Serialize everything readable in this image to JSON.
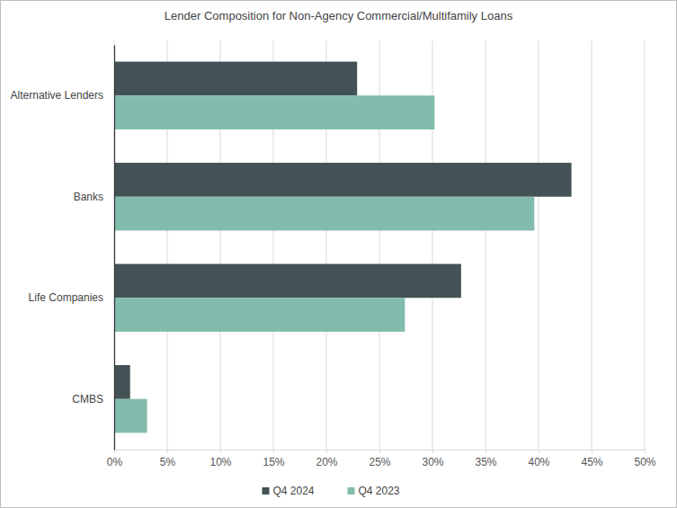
{
  "chart_data": {
    "type": "bar",
    "title": "Lender Composition for Non-Agency Commercial/Multifamily Loans",
    "orientation": "horizontal",
    "categories": [
      "Alternative Lenders",
      "Banks",
      "Life Companies",
      "CMBS"
    ],
    "series": [
      {
        "name": "Q4 2024",
        "color": "#435254",
        "values": [
          22.9,
          43.1,
          32.7,
          1.5
        ]
      },
      {
        "name": "Q4 2023",
        "color": "#82bcad",
        "values": [
          30.2,
          39.6,
          27.4,
          3.1
        ]
      }
    ],
    "xlim": [
      0,
      50
    ],
    "xticks": [
      {
        "value": 0,
        "label": "0%"
      },
      {
        "value": 5,
        "label": "5%"
      },
      {
        "value": 10,
        "label": "10%"
      },
      {
        "value": 15,
        "label": "15%"
      },
      {
        "value": 20,
        "label": "20%"
      },
      {
        "value": 25,
        "label": "25%"
      },
      {
        "value": 30,
        "label": "30%"
      },
      {
        "value": 35,
        "label": "35%"
      },
      {
        "value": 40,
        "label": "40%"
      },
      {
        "value": 45,
        "label": "45%"
      },
      {
        "value": 50,
        "label": "50%"
      }
    ],
    "grid": true,
    "legend": "bottom"
  }
}
